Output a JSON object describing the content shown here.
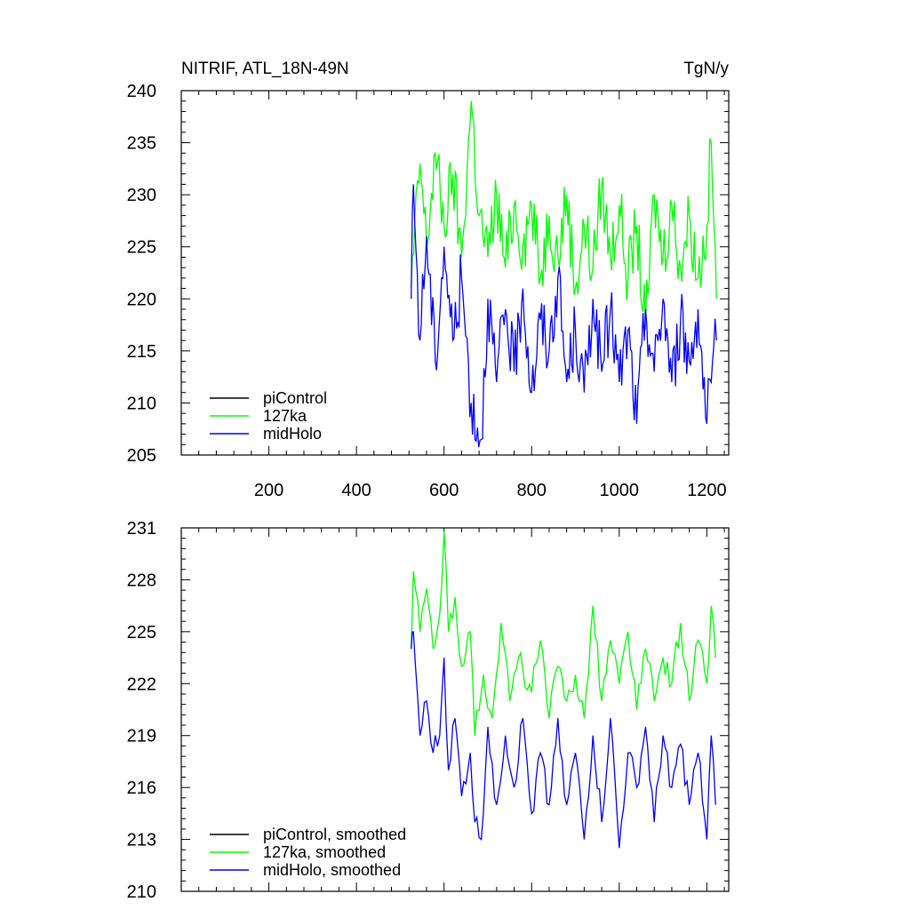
{
  "figure": {
    "title_left": "NITRIF, ATL_18N-49N",
    "title_right": "TgN/y"
  },
  "colors": {
    "piControl": "#000000",
    "127ka": "#00ff00",
    "midHolo": "#0000ff",
    "axis": "#000000"
  },
  "chart_data": [
    {
      "type": "line",
      "panel": "top",
      "title": "NITRIF, ATL_18N-49N",
      "units": "TgN/y",
      "xlim": [
        0,
        1250
      ],
      "ylim": [
        205,
        240
      ],
      "xticks": [
        200,
        400,
        600,
        800,
        1000,
        1200
      ],
      "xtick_labels": [
        "200",
        "400",
        "600",
        "800",
        "1000",
        "1200"
      ],
      "yticks": [
        205,
        210,
        215,
        220,
        225,
        230,
        235,
        240
      ],
      "ytick_labels": [
        "205",
        "210",
        "215",
        "220",
        "225",
        "230",
        "235",
        "240"
      ],
      "legend": [
        "piControl",
        "127ka",
        "midHolo"
      ],
      "legend_position": "bottom-left",
      "series": [
        {
          "name": "piControl",
          "x": [],
          "values": []
        },
        {
          "name": "127ka",
          "x": [
            525,
            545,
            560,
            580,
            600,
            620,
            640,
            662,
            680,
            700,
            720,
            740,
            760,
            780,
            800,
            820,
            840,
            860,
            880,
            900,
            920,
            940,
            960,
            980,
            1000,
            1020,
            1040,
            1060,
            1080,
            1100,
            1120,
            1140,
            1160,
            1180,
            1200,
            1210,
            1222
          ],
          "values": [
            221,
            233,
            225,
            234,
            227,
            232,
            224,
            239,
            228,
            224,
            230,
            223,
            229,
            225,
            229,
            222,
            228,
            224,
            230,
            221,
            227,
            223,
            231,
            224,
            229,
            222,
            227,
            217,
            230,
            224,
            229,
            223,
            228,
            222,
            227,
            235,
            220
          ]
        },
        {
          "name": "midHolo",
          "x": [
            525,
            530,
            545,
            560,
            580,
            600,
            620,
            640,
            662,
            685,
            700,
            720,
            740,
            760,
            780,
            800,
            820,
            840,
            860,
            880,
            900,
            920,
            940,
            960,
            980,
            1000,
            1020,
            1040,
            1060,
            1080,
            1100,
            1120,
            1140,
            1160,
            1180,
            1200,
            1210,
            1222
          ],
          "values": [
            220,
            231,
            216,
            226,
            214,
            225,
            216,
            222,
            210,
            206.5,
            220,
            212,
            219,
            213,
            221,
            211,
            218,
            215,
            222,
            212,
            217,
            211,
            220,
            213,
            219,
            212,
            217,
            208,
            219,
            213,
            220,
            212,
            218,
            214,
            219,
            208,
            212,
            216
          ]
        }
      ]
    },
    {
      "type": "line",
      "panel": "bottom",
      "xlim": [
        0,
        1250
      ],
      "ylim": [
        210,
        231
      ],
      "yticks": [
        210,
        213,
        216,
        219,
        222,
        225,
        228,
        231
      ],
      "ytick_labels": [
        "210",
        "213",
        "216",
        "219",
        "222",
        "225",
        "228",
        "231"
      ],
      "legend": [
        "piControl, smoothed",
        "127ka, smoothed",
        "midHolo, smoothed"
      ],
      "legend_position": "bottom-left",
      "series": [
        {
          "name": "piControl, smoothed",
          "x": [],
          "values": []
        },
        {
          "name": "127ka, smoothed",
          "x": [
            525,
            530,
            545,
            560,
            575,
            590,
            600,
            610,
            625,
            640,
            660,
            670,
            690,
            710,
            730,
            750,
            770,
            800,
            820,
            840,
            860,
            880,
            900,
            920,
            940,
            960,
            980,
            1000,
            1020,
            1040,
            1060,
            1080,
            1100,
            1120,
            1140,
            1160,
            1180,
            1200,
            1210,
            1220
          ],
          "values": [
            224,
            228.5,
            225,
            227.5,
            224,
            226,
            230.8,
            225,
            227,
            223,
            225,
            219,
            222.5,
            220,
            225.5,
            221,
            223.5,
            221.5,
            224.5,
            220,
            223,
            221,
            222.5,
            220,
            226.5,
            221,
            224.5,
            222,
            225,
            220.5,
            224,
            221,
            223.5,
            222,
            225.5,
            221,
            224.5,
            222,
            226.5,
            223.5
          ]
        },
        {
          "name": "midHolo, smoothed",
          "x": [
            525,
            530,
            545,
            560,
            575,
            590,
            600,
            610,
            625,
            640,
            660,
            670,
            685,
            700,
            720,
            740,
            760,
            780,
            800,
            820,
            840,
            860,
            880,
            900,
            920,
            940,
            960,
            980,
            1000,
            1020,
            1040,
            1060,
            1080,
            1100,
            1120,
            1140,
            1160,
            1180,
            1200,
            1210,
            1220
          ],
          "values": [
            224,
            225,
            219,
            221,
            218,
            219,
            223.5,
            217,
            220,
            215.5,
            218,
            214,
            213,
            219.5,
            215,
            219,
            216,
            220,
            214.5,
            218,
            215,
            220,
            215,
            218,
            213,
            219,
            214,
            220,
            212.5,
            218,
            216,
            219.5,
            214,
            219,
            216,
            218.5,
            215,
            218,
            213,
            219,
            215
          ]
        }
      ]
    }
  ]
}
